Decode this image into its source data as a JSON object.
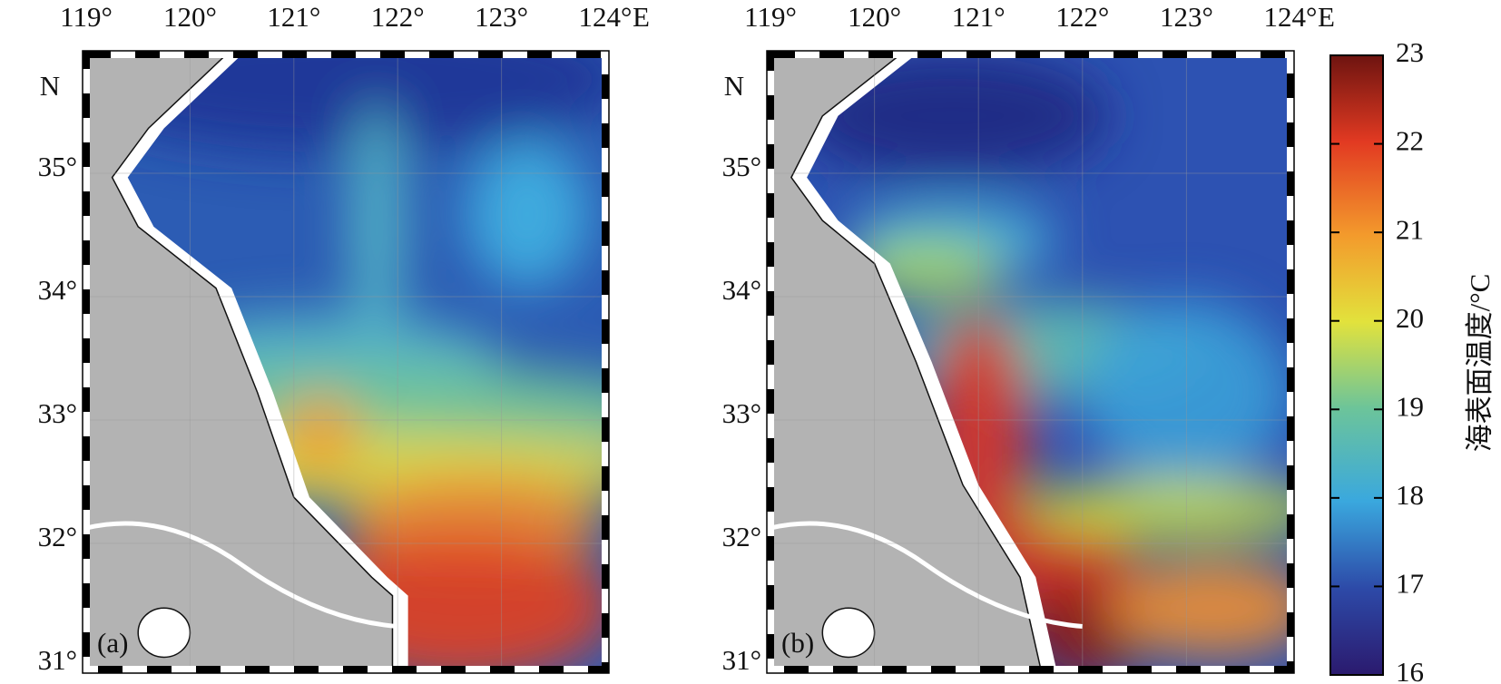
{
  "panels": [
    {
      "label": "(a)"
    },
    {
      "label": "(b)"
    }
  ],
  "lon_ticks": [
    {
      "value": 119,
      "label": "119°"
    },
    {
      "value": 120,
      "label": "120°"
    },
    {
      "value": 121,
      "label": "121°"
    },
    {
      "value": 122,
      "label": "122°"
    },
    {
      "value": 123,
      "label": "123°"
    },
    {
      "value": 124,
      "label": "124°"
    }
  ],
  "lon_unit": "E",
  "lat_ticks": [
    {
      "value": 31,
      "label": "31°"
    },
    {
      "value": 32,
      "label": "32°"
    },
    {
      "value": 33,
      "label": "33°"
    },
    {
      "value": 34,
      "label": "34°"
    },
    {
      "value": 35,
      "label": "35°"
    }
  ],
  "lat_unit": "N",
  "colorbar": {
    "label": "海表面温度/°C",
    "range": [
      16,
      23
    ],
    "ticks": [
      16,
      17,
      18,
      19,
      20,
      21,
      22,
      23
    ]
  }
}
